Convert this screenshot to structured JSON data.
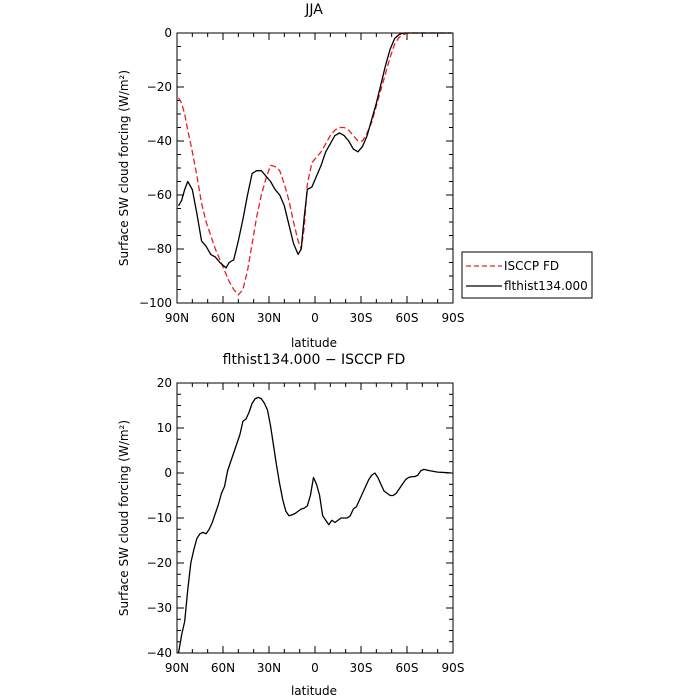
{
  "chart_data": [
    {
      "type": "line",
      "title": "JJA",
      "xlabel": "latitude",
      "ylabel": "Surface SW cloud forcing (W/m²)",
      "xlim": [
        90,
        -90
      ],
      "ylim": [
        -100,
        0
      ],
      "x_ticks": [
        90,
        60,
        30,
        0,
        -30,
        -60,
        -90
      ],
      "x_tick_labels": [
        "90N",
        "60N",
        "30N",
        "0",
        "30S",
        "60S",
        "90S"
      ],
      "y_ticks": [
        0,
        -20,
        -40,
        -60,
        -80,
        -100
      ],
      "y_tick_labels": [
        "0",
        "−20",
        "−40",
        "−60",
        "−80",
        "−100"
      ],
      "legend_position": "right",
      "series": [
        {
          "name": "ISCCP FD",
          "color": "#e8201c",
          "dash": "dashed",
          "x": [
            89,
            87,
            85,
            83,
            80,
            77,
            74,
            71,
            68,
            65,
            62,
            59,
            56,
            53,
            50,
            47,
            44,
            41,
            38,
            35,
            32,
            29,
            26,
            23,
            20,
            17,
            14,
            11,
            9,
            7,
            5,
            2,
            -1,
            -4,
            -7,
            -10,
            -13,
            -16,
            -19,
            -22,
            -25,
            -28,
            -31,
            -34,
            -37,
            -40,
            -43,
            -46,
            -49,
            -52,
            -55,
            -58,
            -61,
            -64,
            -67,
            -70,
            -73,
            -76,
            -80,
            -85,
            -89
          ],
          "y": [
            -24,
            -26,
            -30,
            -36,
            -44,
            -53,
            -63,
            -70,
            -75,
            -80,
            -84,
            -88,
            -92,
            -95,
            -97,
            -95,
            -88,
            -78,
            -68,
            -60,
            -54,
            -49,
            -49.5,
            -51,
            -56,
            -62,
            -70,
            -77,
            -80,
            -72,
            -56,
            -48,
            -46,
            -44,
            -41,
            -38,
            -36,
            -35,
            -35,
            -36,
            -38,
            -40,
            -40,
            -37,
            -33,
            -27,
            -21,
            -15,
            -9,
            -4,
            -1.5,
            -0.5,
            0,
            0,
            0,
            0,
            0,
            0,
            0,
            0,
            0
          ]
        },
        {
          "name": "flthist134.000",
          "color": "#000000",
          "dash": "solid",
          "x": [
            89,
            87,
            85,
            83,
            80,
            77,
            74,
            71,
            68,
            65,
            62,
            60,
            58,
            56,
            53,
            50,
            47,
            44,
            41,
            38,
            35,
            32,
            29,
            26,
            23,
            20,
            17,
            14,
            11,
            9,
            7,
            5,
            2,
            -1,
            -4,
            -7,
            -10,
            -13,
            -16,
            -19,
            -22,
            -25,
            -28,
            -31,
            -34,
            -37,
            -40,
            -43,
            -46,
            -49,
            -52,
            -55,
            -58,
            -61,
            -64,
            -67,
            -70,
            -73,
            -76,
            -80,
            -85,
            -89
          ],
          "y": [
            -64,
            -62,
            -58,
            -55,
            -58,
            -67,
            -77,
            -79,
            -82,
            -83,
            -85,
            -86,
            -87,
            -85,
            -84,
            -77,
            -69,
            -60,
            -52,
            -51,
            -51,
            -53,
            -55,
            -58,
            -60,
            -64,
            -71,
            -78,
            -82,
            -80,
            -68,
            -58,
            -57,
            -53,
            -49,
            -44,
            -41,
            -38,
            -37,
            -38,
            -40,
            -43,
            -44,
            -42,
            -38,
            -32,
            -26,
            -19,
            -12,
            -6,
            -2,
            -0.5,
            0,
            0,
            0,
            0,
            0,
            0,
            0,
            0,
            0,
            0
          ]
        }
      ]
    },
    {
      "type": "line",
      "title": "flthist134.000 − ISCCP FD",
      "xlabel": "latitude",
      "ylabel": "Surface SW cloud forcing (W/m²)",
      "xlim": [
        90,
        -90
      ],
      "ylim": [
        -40,
        20
      ],
      "x_ticks": [
        90,
        60,
        30,
        0,
        -30,
        -60,
        -90
      ],
      "x_tick_labels": [
        "90N",
        "60N",
        "30N",
        "0",
        "30S",
        "60S",
        "90S"
      ],
      "y_ticks": [
        20,
        10,
        0,
        -10,
        -20,
        -30,
        -40
      ],
      "y_tick_labels": [
        "20",
        "10",
        "0",
        "−10",
        "−20",
        "−30",
        "−40"
      ],
      "series": [
        {
          "color": "#000000",
          "dash": "solid",
          "x": [
            89,
            87,
            85,
            83,
            81,
            79,
            77,
            75,
            73,
            71,
            69,
            67,
            65,
            63,
            61,
            59,
            57,
            55,
            53,
            51,
            49,
            47,
            45,
            43,
            41,
            39,
            37,
            35,
            33,
            31,
            29,
            27,
            25,
            23,
            21,
            19,
            17,
            15,
            13,
            11,
            9,
            7,
            5,
            3,
            1,
            -1,
            -3,
            -5,
            -7,
            -9,
            -11,
            -13,
            -15,
            -17,
            -19,
            -21,
            -23,
            -25,
            -27,
            -29,
            -31,
            -33,
            -35,
            -37,
            -39,
            -41,
            -43,
            -45,
            -47,
            -49,
            -51,
            -53,
            -55,
            -57,
            -59,
            -61,
            -63,
            -65,
            -67,
            -69,
            -71,
            -75,
            -80,
            -85,
            -89
          ],
          "y": [
            -40,
            -36,
            -33,
            -26,
            -20,
            -17,
            -14.5,
            -13.5,
            -13.2,
            -13.5,
            -12.5,
            -11,
            -9,
            -7,
            -4.5,
            -3,
            0.5,
            2.5,
            4.5,
            6.5,
            8.5,
            11.5,
            12,
            13.5,
            15.5,
            16.5,
            16.8,
            16.5,
            15.5,
            14,
            10.5,
            6,
            1.5,
            -2.5,
            -6,
            -8.5,
            -9.5,
            -9.3,
            -9,
            -8.5,
            -8,
            -7.8,
            -7.3,
            -5,
            -1,
            -2.5,
            -5,
            -9.5,
            -10.5,
            -11.5,
            -10.5,
            -11,
            -10.5,
            -10,
            -10,
            -10,
            -9.5,
            -8,
            -7.5,
            -6,
            -4.5,
            -3,
            -1.5,
            -0.5,
            0,
            -1,
            -2.5,
            -4,
            -4.5,
            -5,
            -5,
            -4.5,
            -3.5,
            -2.5,
            -1.5,
            -1,
            -0.8,
            -0.8,
            -0.5,
            0.5,
            0.8,
            0.5,
            0.2,
            0.1,
            0
          ]
        }
      ]
    }
  ]
}
